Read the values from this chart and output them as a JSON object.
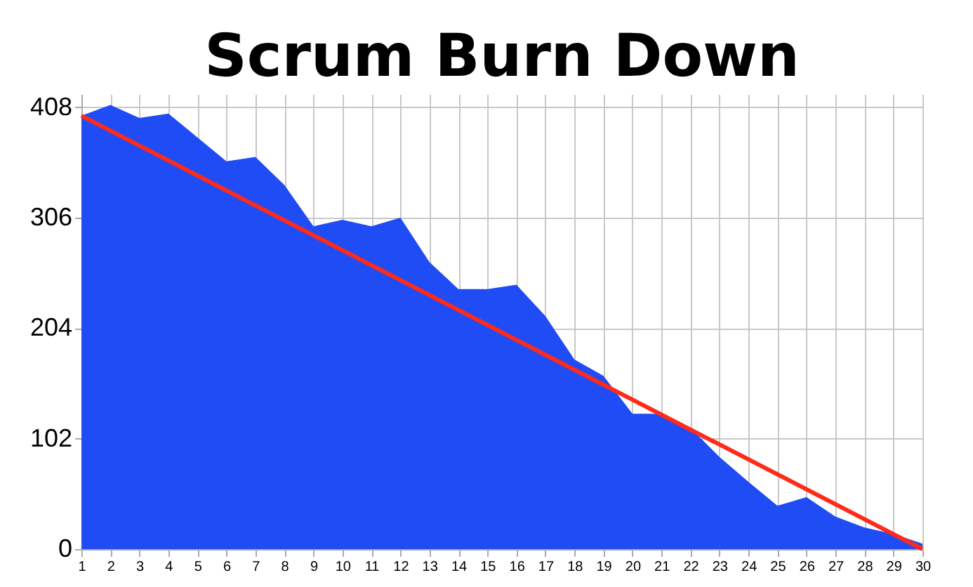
{
  "chart_data": {
    "type": "area",
    "title": "Scrum Burn Down",
    "x": [
      1,
      2,
      3,
      4,
      5,
      6,
      7,
      8,
      9,
      10,
      11,
      12,
      13,
      14,
      15,
      16,
      17,
      18,
      19,
      20,
      21,
      22,
      23,
      24,
      25,
      26,
      27,
      28,
      29,
      30
    ],
    "series": [
      {
        "color": "#1f4cf5",
        "values": [
          400,
          410,
          398,
          402,
          380,
          358,
          362,
          336,
          298,
          304,
          298,
          306,
          265,
          240,
          240,
          244,
          215,
          175,
          160,
          125,
          125,
          112,
          85,
          62,
          40,
          48,
          30,
          20,
          14,
          5
        ]
      },
      {
        "type": "line",
        "color": "#ff2a1a",
        "x": [
          1,
          30
        ],
        "values": [
          400,
          0
        ]
      }
    ],
    "xlim": [
      1,
      30
    ],
    "xticks": [
      1,
      2,
      3,
      4,
      5,
      6,
      7,
      8,
      9,
      10,
      11,
      12,
      13,
      14,
      15,
      16,
      17,
      18,
      19,
      20,
      21,
      22,
      23,
      24,
      25,
      26,
      27,
      28,
      29,
      30
    ],
    "ylim": [
      0,
      420
    ],
    "yticks": [
      0,
      102,
      204,
      306,
      408
    ],
    "grid": true
  }
}
